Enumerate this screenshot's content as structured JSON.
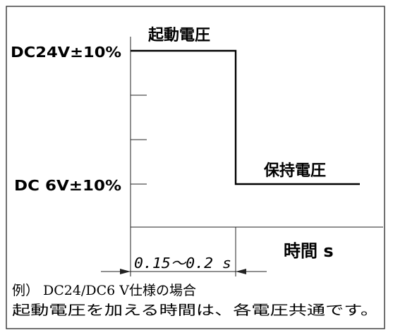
{
  "diagram": {
    "y_axis": {
      "upper_value_label": "DC24V±10%",
      "lower_value_label": "DC 6V±10%"
    },
    "x_axis": {
      "unit_label": "時間 s",
      "interval_label": "0.15～0.2 s"
    },
    "segments": {
      "startup_label": "起動電圧",
      "holding_label": "保持電圧"
    }
  },
  "notes": {
    "line1": "例） DC24/DC6 V仕様の場合",
    "line2": "起動電圧を加える時間は、各電圧共通です。"
  }
}
